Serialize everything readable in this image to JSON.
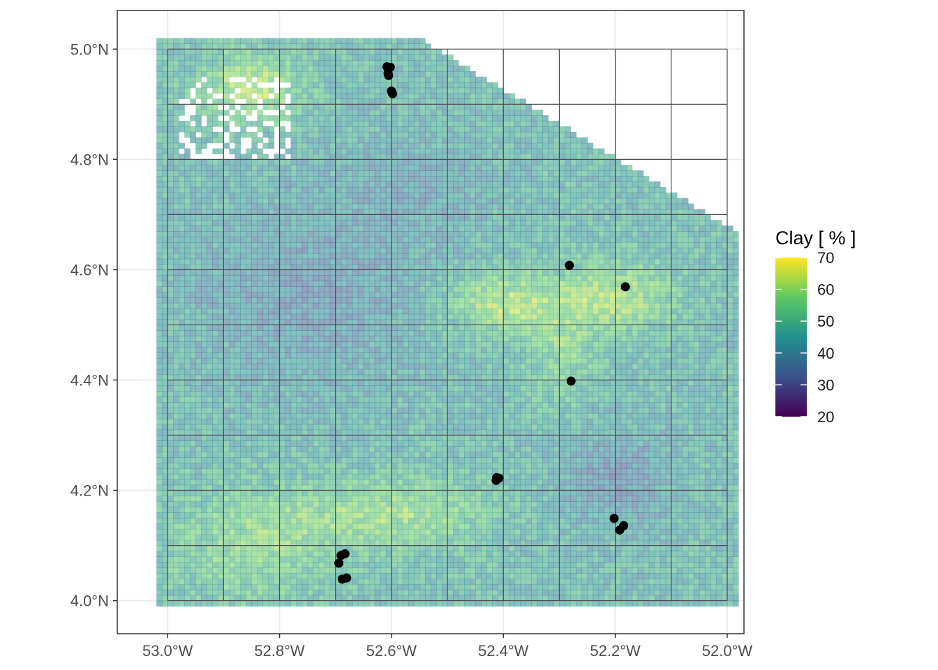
{
  "chart_data": {
    "type": "heatmap",
    "title": "",
    "xlabel": "",
    "ylabel": "",
    "xlim": [
      -53.09,
      -51.97
    ],
    "ylim": [
      3.94,
      5.07
    ],
    "x_ticks": [
      {
        "value": -53.0,
        "label": "53.0°W"
      },
      {
        "value": -52.8,
        "label": "52.8°W"
      },
      {
        "value": -52.6,
        "label": "52.6°W"
      },
      {
        "value": -52.4,
        "label": "52.4°W"
      },
      {
        "value": -52.2,
        "label": "52.2°W"
      },
      {
        "value": -52.0,
        "label": "52.0°W"
      }
    ],
    "y_ticks": [
      {
        "value": 4.0,
        "label": "4.0°N"
      },
      {
        "value": 4.2,
        "label": "4.2°N"
      },
      {
        "value": 4.4,
        "label": "4.4°N"
      },
      {
        "value": 4.6,
        "label": "4.6°N"
      },
      {
        "value": 4.8,
        "label": "4.8°N"
      },
      {
        "value": 5.0,
        "label": "5.0°N"
      }
    ],
    "raster_extent": {
      "lon": [
        -53.02,
        -51.98
      ],
      "lat": [
        3.99,
        5.02
      ]
    },
    "tile_grid": {
      "lon_step": 0.1,
      "lat_step": 0.1,
      "lon": [
        -53.0,
        -52.0
      ],
      "lat": [
        4.0,
        5.0
      ]
    },
    "legend": {
      "title": "Clay [ % ]",
      "position": "right",
      "min": 20,
      "max": 70,
      "breaks": [
        {
          "value": 70,
          "label": "70"
        },
        {
          "value": 60,
          "label": "60"
        },
        {
          "value": 50,
          "label": "50"
        },
        {
          "value": 40,
          "label": "40"
        },
        {
          "value": 30,
          "label": "30"
        },
        {
          "value": 20,
          "label": "20"
        }
      ],
      "palette": [
        "#440154",
        "#3b528b",
        "#21908c",
        "#5dc863",
        "#fde725"
      ]
    },
    "points": [
      {
        "lon": -52.608,
        "lat": 4.968
      },
      {
        "lon": -52.602,
        "lat": 4.967
      },
      {
        "lon": -52.606,
        "lat": 4.956
      },
      {
        "lon": -52.605,
        "lat": 4.952
      },
      {
        "lon": -52.6,
        "lat": 4.924
      },
      {
        "lon": -52.598,
        "lat": 4.919
      },
      {
        "lon": -52.282,
        "lat": 4.608
      },
      {
        "lon": -52.182,
        "lat": 4.569
      },
      {
        "lon": -52.279,
        "lat": 4.398
      },
      {
        "lon": -52.412,
        "lat": 4.223
      },
      {
        "lon": -52.408,
        "lat": 4.222
      },
      {
        "lon": -52.413,
        "lat": 4.218
      },
      {
        "lon": -52.202,
        "lat": 4.149
      },
      {
        "lon": -52.185,
        "lat": 4.136
      },
      {
        "lon": -52.192,
        "lat": 4.128
      },
      {
        "lon": -52.69,
        "lat": 4.082
      },
      {
        "lon": -52.683,
        "lat": 4.085
      },
      {
        "lon": -52.694,
        "lat": 4.068
      },
      {
        "lon": -52.688,
        "lat": 4.039
      },
      {
        "lon": -52.68,
        "lat": 4.041
      }
    ],
    "grid": true,
    "colors": {
      "panel_border": "#333333",
      "grid_major": "#ebebeb",
      "tile_lines": "#4d4d4d",
      "points": "#000000",
      "no_data": "#ffffff"
    }
  }
}
